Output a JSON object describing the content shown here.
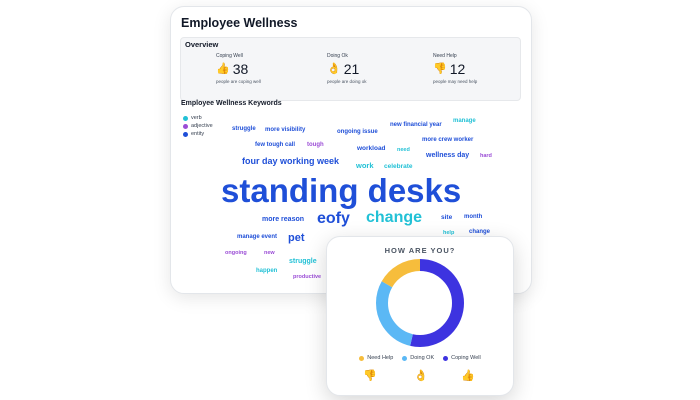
{
  "wellness": {
    "title": "Employee Wellness",
    "overview": {
      "title": "Overview",
      "metrics": [
        {
          "label": "Coping Well",
          "icon": "thumbs-up-icon",
          "glyph": "👍",
          "value": "38",
          "sub": "people are coping well"
        },
        {
          "label": "Doing Ok",
          "icon": "ok-hand-icon",
          "glyph": "👌",
          "value": "21",
          "sub": "people are doing ok"
        },
        {
          "label": "Need Help",
          "icon": "thumbs-down-icon",
          "glyph": "👎",
          "value": "12",
          "sub": "people may need help"
        }
      ]
    },
    "keywords": {
      "title": "Employee Wellness Keywords",
      "legend": [
        {
          "label": "verb",
          "color": "#22c1d6"
        },
        {
          "label": "adjective",
          "color": "#9b4dd6"
        },
        {
          "label": "entity",
          "color": "#1f4fd8"
        }
      ],
      "words": [
        {
          "text": "struggle",
          "type": "entity"
        },
        {
          "text": "more visibility",
          "type": "entity"
        },
        {
          "text": "ongoing issue",
          "type": "entity"
        },
        {
          "text": "new financial year",
          "type": "entity"
        },
        {
          "text": "manage",
          "type": "verb"
        },
        {
          "text": "more crew worker",
          "type": "entity"
        },
        {
          "text": "few tough call",
          "type": "entity"
        },
        {
          "text": "tough",
          "type": "adjective"
        },
        {
          "text": "workload",
          "type": "entity"
        },
        {
          "text": "need",
          "type": "verb"
        },
        {
          "text": "wellness day",
          "type": "entity"
        },
        {
          "text": "hard",
          "type": "adjective"
        },
        {
          "text": "four day working week",
          "type": "entity"
        },
        {
          "text": "work",
          "type": "verb"
        },
        {
          "text": "celebrate",
          "type": "verb"
        },
        {
          "text": "standing desks",
          "type": "entity"
        },
        {
          "text": "more reason",
          "type": "entity"
        },
        {
          "text": "eofy",
          "type": "entity"
        },
        {
          "text": "change",
          "type": "verb"
        },
        {
          "text": "site",
          "type": "entity"
        },
        {
          "text": "month",
          "type": "entity"
        },
        {
          "text": "manage event",
          "type": "entity"
        },
        {
          "text": "pet",
          "type": "entity"
        },
        {
          "text": "help",
          "type": "verb"
        },
        {
          "text": "change",
          "type": "entity"
        },
        {
          "text": "ongoing",
          "type": "adjective"
        },
        {
          "text": "new",
          "type": "adjective"
        },
        {
          "text": "struggle",
          "type": "verb"
        },
        {
          "text": "happen",
          "type": "verb"
        },
        {
          "text": "productive",
          "type": "adjective"
        }
      ]
    }
  },
  "survey": {
    "title": "HOW ARE YOU?",
    "legend": [
      {
        "label": "Need Help",
        "color": "#f6bd3c"
      },
      {
        "label": "Doing OK",
        "color": "#5bb8f5"
      },
      {
        "label": "Coping Well",
        "color": "#3d33e0"
      }
    ],
    "icons": [
      {
        "icon": "thumbs-down-icon",
        "glyph": "👎"
      },
      {
        "icon": "ok-hand-icon",
        "glyph": "👌"
      },
      {
        "icon": "thumbs-up-icon",
        "glyph": "👍"
      }
    ]
  },
  "chart_data": {
    "type": "pie",
    "donut": true,
    "title": "HOW ARE YOU?",
    "categories": [
      "Need Help",
      "Doing OK",
      "Coping Well"
    ],
    "values": [
      12,
      21,
      38
    ],
    "colors": [
      "#f6bd3c",
      "#5bb8f5",
      "#3d33e0"
    ],
    "legend_position": "bottom"
  }
}
